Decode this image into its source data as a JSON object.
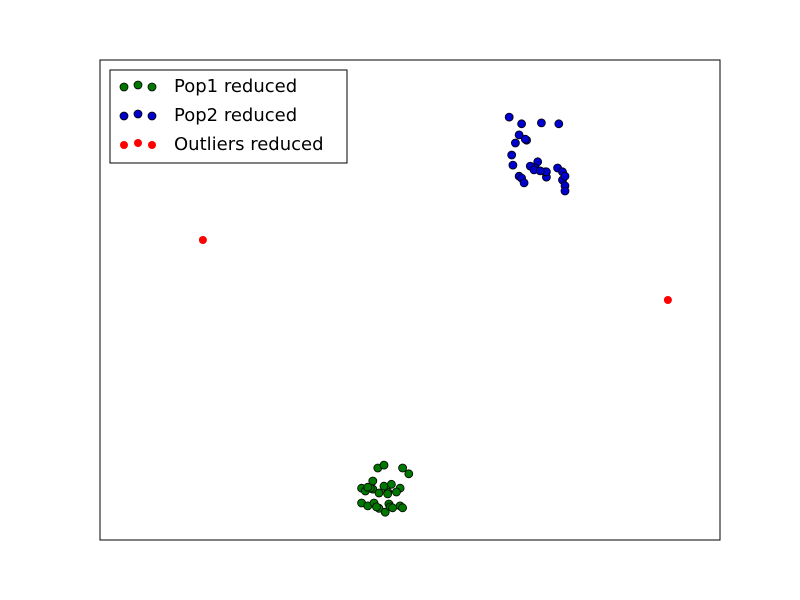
{
  "chart_data": {
    "type": "scatter",
    "title": "",
    "xlabel": "",
    "ylabel": "",
    "xlim": [
      0,
      100
    ],
    "ylim": [
      0,
      100
    ],
    "xticks": false,
    "yticks": false,
    "grid": false,
    "legend_position": "top-left",
    "series": [
      {
        "name": "Pop1 reduced",
        "color": "#007700",
        "edge": true,
        "points": [
          [
            49.8,
            13.8
          ],
          [
            48.8,
            15.0
          ],
          [
            46.6,
            7.5
          ],
          [
            44.8,
            15.0
          ],
          [
            45.8,
            15.6
          ],
          [
            44.0,
            12.3
          ],
          [
            48.4,
            10.8
          ],
          [
            45.0,
            6.6
          ],
          [
            46.0,
            5.8
          ],
          [
            44.0,
            10.6
          ],
          [
            45.0,
            9.8
          ],
          [
            42.2,
            10.8
          ],
          [
            43.6,
            10.8
          ],
          [
            47.8,
            10.0
          ],
          [
            46.4,
            10.0
          ],
          [
            42.2,
            7.7
          ],
          [
            43.2,
            7.1
          ],
          [
            44.2,
            7.7
          ],
          [
            46.8,
            6.9
          ],
          [
            47.2,
            6.7
          ],
          [
            48.4,
            7.1
          ],
          [
            42.8,
            10.2
          ],
          [
            45.8,
            11.2
          ],
          [
            46.4,
            9.6
          ],
          [
            43.2,
            11.0
          ],
          [
            44.6,
            6.9
          ],
          [
            48.8,
            6.7
          ],
          [
            47.0,
            11.6
          ]
        ]
      },
      {
        "name": "Pop2 reduced",
        "color": "#0000cc",
        "edge": true,
        "points": [
          [
            68.0,
            86.7
          ],
          [
            68.8,
            83.3
          ],
          [
            66.0,
            88.1
          ],
          [
            71.2,
            86.9
          ],
          [
            74.0,
            86.7
          ],
          [
            67.0,
            82.7
          ],
          [
            67.6,
            84.4
          ],
          [
            68.6,
            83.5
          ],
          [
            70.6,
            78.8
          ],
          [
            72.0,
            75.6
          ],
          [
            71.8,
            76.7
          ],
          [
            73.8,
            77.5
          ],
          [
            74.6,
            76.7
          ],
          [
            74.6,
            75.0
          ],
          [
            70.2,
            77.5
          ],
          [
            69.4,
            77.9
          ],
          [
            70.0,
            77.1
          ],
          [
            67.6,
            75.8
          ],
          [
            66.6,
            78.1
          ],
          [
            66.4,
            80.2
          ],
          [
            68.0,
            75.4
          ],
          [
            75.0,
            75.8
          ],
          [
            75.0,
            73.8
          ],
          [
            75.0,
            72.7
          ],
          [
            72.0,
            76.7
          ],
          [
            68.4,
            74.4
          ],
          [
            71.0,
            76.9
          ]
        ]
      },
      {
        "name": "Outliers reduced",
        "color": "#ff0000",
        "edge": false,
        "points": [
          [
            16.6,
            62.5
          ],
          [
            91.6,
            50.0
          ]
        ]
      }
    ]
  }
}
